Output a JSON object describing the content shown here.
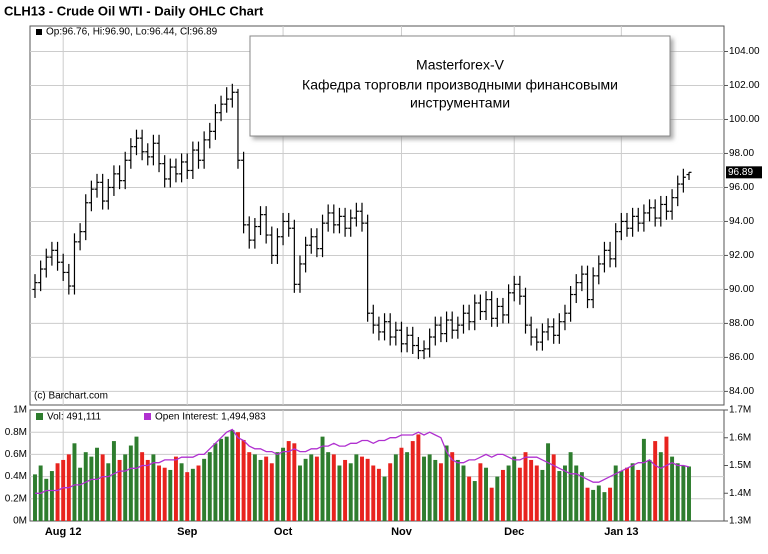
{
  "chart_data": [
    {
      "type": "ohlc",
      "title": "CLH13 - Crude Oil WTI - Daily OHLC Chart",
      "legend": "Op:96.76, Hi:96.90, Lo:96.44, Cl:96.89",
      "credit": "(c) Barchart.com",
      "annotation": {
        "title": "Masterforex-V",
        "lines": [
          "Кафедра торговли производными финансовыми",
          "инструментами"
        ]
      },
      "color": "#000000",
      "grid": true,
      "ylim": [
        83.2,
        105.5
      ],
      "yticks": [
        {
          "value": 84,
          "label": "84.00"
        },
        {
          "value": 86,
          "label": "86.00"
        },
        {
          "value": 88,
          "label": "88.00"
        },
        {
          "value": 90,
          "label": "90.00"
        },
        {
          "value": 92,
          "label": "92.00"
        },
        {
          "value": 94,
          "label": "94.00"
        },
        {
          "value": 96,
          "label": "96.00"
        },
        {
          "value": 98,
          "label": "98.00"
        },
        {
          "value": 100,
          "label": "100.00"
        },
        {
          "value": 102,
          "label": "102.00"
        },
        {
          "value": 104,
          "label": "104.00"
        }
      ],
      "open": [
        90.0,
        90.4,
        91.2,
        91.9,
        92.3,
        91.6,
        91.0,
        90.2,
        92.8,
        93.4,
        95.1,
        95.9,
        96.3,
        95.2,
        96.0,
        96.8,
        96.4,
        97.6,
        98.4,
        98.9,
        98.1,
        97.8,
        98.6,
        97.4,
        96.5,
        97.2,
        96.8,
        97.5,
        97.0,
        98.2,
        97.6,
        98.8,
        99.3,
        100.4,
        100.9,
        101.2,
        101.6,
        97.6,
        93.8,
        92.9,
        93.7,
        94.4,
        93.2,
        92.0,
        93.1,
        94.0,
        93.6,
        90.3,
        91.5,
        92.6,
        93.1,
        92.4,
        93.9,
        94.5,
        93.8,
        94.3,
        93.6,
        94.2,
        94.6,
        93.9,
        88.6,
        87.9,
        87.5,
        88.1,
        87.2,
        87.6,
        86.8,
        87.3,
        86.7,
        86.4,
        86.5,
        87.2,
        87.9,
        87.4,
        88.2,
        87.6,
        87.9,
        88.6,
        88.1,
        89.2,
        88.7,
        89.4,
        88.3,
        89.0,
        88.5,
        89.8,
        90.3,
        89.6,
        87.9,
        87.2,
        86.9,
        87.5,
        87.8,
        87.3,
        88.1,
        88.6,
        89.7,
        90.4,
        90.9,
        89.4,
        90.8,
        91.5,
        92.3,
        91.8,
        93.4,
        94.0,
        93.6,
        94.3,
        93.9,
        94.5,
        94.8,
        94.2,
        95.0,
        94.6,
        95.4,
        96.2,
        96.76
      ],
      "high": [
        90.9,
        91.7,
        92.4,
        92.8,
        92.8,
        92.1,
        91.5,
        93.3,
        93.9,
        95.6,
        96.4,
        96.8,
        96.8,
        96.5,
        97.3,
        97.3,
        98.1,
        98.9,
        99.4,
        99.4,
        98.6,
        99.1,
        99.1,
        97.9,
        97.7,
        97.7,
        98.0,
        98.0,
        98.7,
        98.7,
        99.3,
        99.8,
        100.9,
        101.4,
        101.9,
        102.1,
        101.8,
        98.1,
        94.3,
        94.2,
        94.9,
        94.9,
        93.7,
        93.6,
        94.5,
        94.5,
        94.1,
        92.0,
        93.1,
        93.6,
        93.6,
        94.4,
        95.0,
        95.0,
        94.8,
        94.8,
        94.7,
        95.1,
        95.1,
        94.4,
        89.1,
        88.4,
        88.6,
        88.6,
        88.1,
        88.1,
        87.8,
        87.8,
        87.2,
        87.0,
        87.7,
        88.4,
        88.4,
        88.7,
        88.7,
        88.4,
        89.1,
        89.1,
        89.7,
        89.7,
        89.9,
        89.9,
        89.5,
        89.5,
        90.3,
        90.8,
        90.8,
        90.1,
        88.4,
        87.7,
        88.0,
        88.3,
        88.3,
        88.6,
        89.1,
        90.2,
        90.9,
        91.4,
        91.4,
        91.3,
        92.0,
        92.8,
        92.8,
        93.9,
        94.5,
        94.5,
        94.8,
        94.8,
        95.0,
        95.3,
        95.3,
        95.5,
        95.5,
        95.9,
        96.7,
        97.1,
        96.9
      ],
      "low": [
        89.5,
        89.9,
        90.7,
        91.4,
        91.1,
        90.5,
        89.7,
        89.7,
        92.3,
        92.9,
        94.6,
        95.4,
        94.7,
        94.7,
        95.5,
        95.9,
        95.9,
        97.1,
        97.9,
        97.6,
        97.3,
        97.3,
        96.9,
        96.0,
        96.0,
        96.3,
        96.3,
        96.5,
        96.5,
        97.1,
        97.1,
        98.3,
        98.8,
        99.9,
        100.4,
        100.7,
        97.1,
        93.3,
        92.4,
        92.4,
        93.2,
        92.7,
        91.5,
        91.5,
        92.6,
        93.1,
        89.8,
        89.8,
        91.0,
        92.1,
        91.9,
        91.9,
        93.4,
        93.3,
        93.3,
        93.1,
        93.1,
        93.7,
        93.4,
        88.1,
        87.4,
        87.0,
        87.0,
        86.7,
        86.7,
        86.3,
        86.3,
        86.2,
        85.9,
        85.9,
        86.0,
        86.7,
        86.9,
        86.9,
        87.1,
        87.1,
        87.4,
        87.6,
        87.6,
        88.2,
        88.2,
        87.8,
        87.8,
        88.0,
        88.0,
        89.3,
        89.1,
        87.4,
        86.7,
        86.4,
        86.4,
        87.0,
        86.8,
        86.8,
        87.6,
        88.1,
        89.2,
        89.9,
        88.9,
        88.9,
        90.3,
        91.0,
        91.3,
        91.3,
        92.9,
        93.1,
        93.1,
        93.4,
        93.4,
        94.0,
        93.7,
        93.7,
        94.1,
        94.1,
        94.9,
        95.7,
        96.44
      ],
      "close": [
        90.4,
        91.2,
        91.9,
        92.3,
        91.6,
        91.0,
        90.2,
        92.8,
        93.4,
        95.1,
        95.9,
        96.3,
        95.2,
        96.0,
        96.8,
        96.4,
        97.6,
        98.4,
        98.9,
        98.1,
        97.8,
        98.6,
        97.4,
        96.5,
        97.2,
        96.8,
        97.5,
        97.0,
        98.2,
        97.6,
        98.8,
        99.3,
        100.4,
        100.9,
        101.2,
        101.6,
        97.6,
        93.8,
        92.9,
        93.7,
        94.4,
        93.2,
        92.0,
        93.1,
        94.0,
        93.6,
        90.3,
        91.5,
        92.6,
        93.1,
        92.4,
        93.9,
        94.5,
        93.8,
        94.3,
        93.6,
        94.2,
        94.6,
        93.9,
        88.6,
        87.9,
        87.5,
        88.1,
        87.2,
        87.6,
        86.8,
        87.3,
        86.7,
        86.4,
        86.5,
        87.2,
        87.9,
        87.4,
        88.2,
        87.6,
        87.9,
        88.6,
        88.1,
        89.2,
        88.7,
        89.4,
        88.3,
        89.0,
        88.5,
        89.8,
        90.3,
        89.6,
        87.9,
        87.2,
        86.9,
        87.5,
        87.8,
        87.3,
        88.1,
        88.6,
        89.7,
        90.4,
        90.9,
        89.4,
        90.8,
        91.5,
        92.3,
        91.8,
        93.4,
        94.0,
        93.6,
        94.3,
        93.9,
        94.5,
        94.8,
        94.2,
        95.0,
        94.6,
        95.4,
        96.2,
        96.6,
        96.89
      ]
    },
    {
      "type": "bar",
      "categories": [
        null,
        null,
        null,
        null,
        null,
        "Aug 12",
        null,
        null,
        null,
        null,
        null,
        null,
        null,
        null,
        null,
        null,
        null,
        null,
        null,
        null,
        null,
        null,
        null,
        null,
        null,
        null,
        null,
        "Sep",
        null,
        null,
        null,
        null,
        null,
        null,
        null,
        null,
        null,
        null,
        null,
        null,
        null,
        null,
        null,
        null,
        "Oct",
        null,
        null,
        null,
        null,
        null,
        null,
        null,
        null,
        null,
        null,
        null,
        null,
        null,
        null,
        null,
        null,
        null,
        null,
        null,
        null,
        "Nov",
        null,
        null,
        null,
        null,
        null,
        null,
        null,
        null,
        null,
        null,
        null,
        null,
        null,
        null,
        null,
        null,
        null,
        null,
        null,
        "Dec",
        null,
        null,
        null,
        null,
        null,
        null,
        null,
        null,
        null,
        null,
        null,
        null,
        null,
        null,
        null,
        null,
        null,
        null,
        "Jan 13",
        null,
        null,
        null,
        null,
        null,
        null,
        null,
        null,
        null,
        null,
        null,
        null
      ],
      "grid": true,
      "ylim": [
        0,
        1.0
      ],
      "yticks": [
        {
          "value": 0,
          "label": "0M"
        },
        {
          "value": 0.2,
          "label": "0.2M"
        },
        {
          "value": 0.4,
          "label": "0.4M"
        },
        {
          "value": 0.6,
          "label": "0.6M"
        },
        {
          "value": 0.8,
          "label": "0.8M"
        },
        {
          "value": 1.0,
          "label": "1M"
        }
      ],
      "y2lim": [
        1.3,
        1.7
      ],
      "y2ticks": [
        {
          "value": 1.3,
          "label": "1.3M"
        },
        {
          "value": 1.4,
          "label": "1.4M"
        },
        {
          "value": 1.5,
          "label": "1.5M"
        },
        {
          "value": 1.6,
          "label": "1.6M"
        },
        {
          "value": 1.7,
          "label": "1.7M"
        }
      ],
      "series": [
        {
          "name": "Vol: 491,111",
          "color": "#2e7d2e",
          "up_color": "#2e7d2e",
          "down_color": "#e8231e",
          "values": [
            0.42,
            0.5,
            0.38,
            0.45,
            0.52,
            0.55,
            0.6,
            0.7,
            0.48,
            0.62,
            0.58,
            0.66,
            0.6,
            0.52,
            0.72,
            0.55,
            0.6,
            0.68,
            0.76,
            0.62,
            0.55,
            0.6,
            0.5,
            0.48,
            0.46,
            0.58,
            0.52,
            0.44,
            0.47,
            0.5,
            0.56,
            0.62,
            0.7,
            0.74,
            0.76,
            0.82,
            0.8,
            0.73,
            0.62,
            0.6,
            0.55,
            0.58,
            0.52,
            0.62,
            0.66,
            0.72,
            0.7,
            0.5,
            0.56,
            0.6,
            0.58,
            0.76,
            0.62,
            0.6,
            0.5,
            0.55,
            0.52,
            0.6,
            0.58,
            0.56,
            0.5,
            0.47,
            0.4,
            0.52,
            0.6,
            0.66,
            0.62,
            0.72,
            0.78,
            0.58,
            0.6,
            0.55,
            0.52,
            0.68,
            0.62,
            0.55,
            0.5,
            0.4,
            0.36,
            0.52,
            0.48,
            0.3,
            0.4,
            0.46,
            0.5,
            0.58,
            0.48,
            0.62,
            0.55,
            0.5,
            0.46,
            0.7,
            0.6,
            0.45,
            0.5,
            0.62,
            0.5,
            0.44,
            0.3,
            0.28,
            0.32,
            0.26,
            0.3,
            0.5,
            0.45,
            0.48,
            0.52,
            0.46,
            0.74,
            0.55,
            0.72,
            0.62,
            0.76,
            0.58,
            0.52,
            0.5,
            0.491111
          ]
        },
        {
          "name": "Open Interest: 1,494,983",
          "color": "#b030d0",
          "axis": "y2",
          "values": [
            1.4,
            1.4,
            1.41,
            1.41,
            1.41,
            1.42,
            1.42,
            1.43,
            1.43,
            1.44,
            1.45,
            1.45,
            1.46,
            1.46,
            1.47,
            1.48,
            1.48,
            1.49,
            1.49,
            1.5,
            1.5,
            1.51,
            1.51,
            1.52,
            1.52,
            1.52,
            1.53,
            1.53,
            1.53,
            1.54,
            1.54,
            1.56,
            1.58,
            1.6,
            1.62,
            1.63,
            1.6,
            1.59,
            1.57,
            1.56,
            1.56,
            1.55,
            1.55,
            1.54,
            1.55,
            1.55,
            1.56,
            1.55,
            1.55,
            1.56,
            1.56,
            1.57,
            1.57,
            1.58,
            1.57,
            1.57,
            1.58,
            1.58,
            1.59,
            1.59,
            1.58,
            1.59,
            1.59,
            1.6,
            1.6,
            1.61,
            1.61,
            1.61,
            1.62,
            1.61,
            1.62,
            1.61,
            1.6,
            1.55,
            1.52,
            1.51,
            1.51,
            1.52,
            1.52,
            1.53,
            1.54,
            1.53,
            1.54,
            1.54,
            1.53,
            1.52,
            1.52,
            1.53,
            1.53,
            1.53,
            1.52,
            1.51,
            1.5,
            1.49,
            1.48,
            1.47,
            1.47,
            1.46,
            1.45,
            1.44,
            1.44,
            1.45,
            1.46,
            1.47,
            1.48,
            1.49,
            1.5,
            1.51,
            1.51,
            1.52,
            1.5,
            1.49,
            1.5,
            1.51,
            1.5,
            1.5,
            1.494983
          ]
        }
      ]
    }
  ]
}
